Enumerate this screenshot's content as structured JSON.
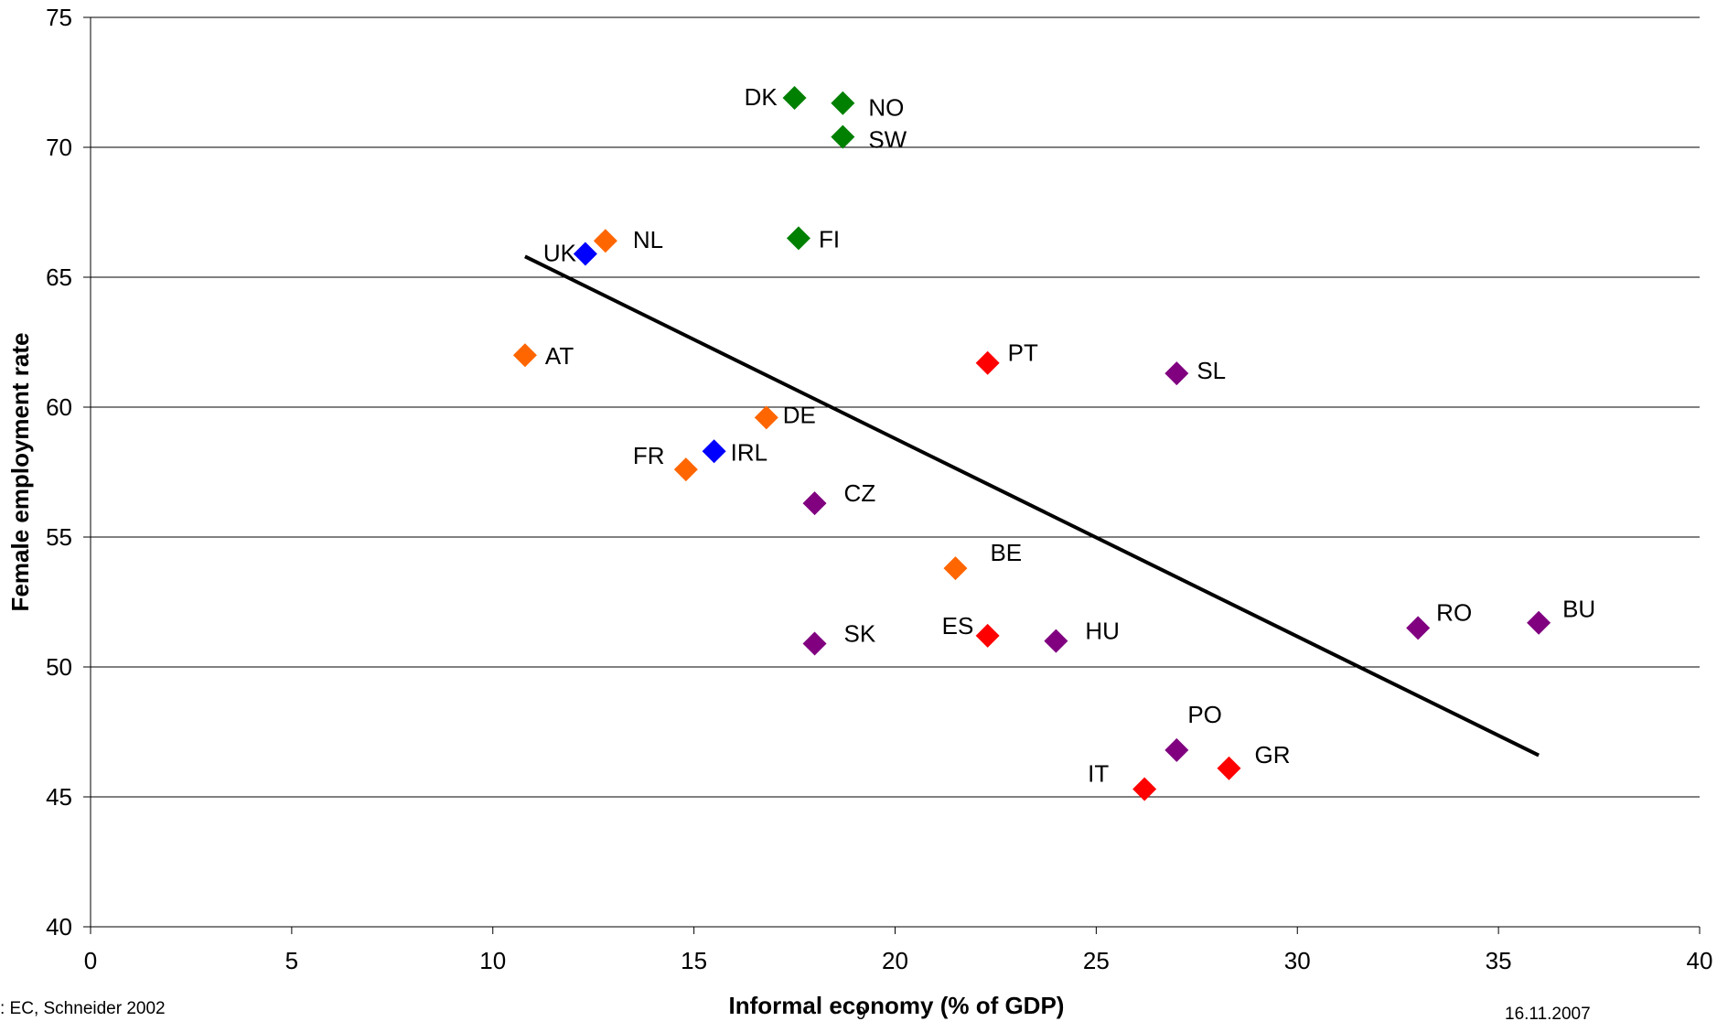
{
  "footer": {
    "source": ": EC, Schneider 2002",
    "page_number": "9",
    "date": "16.11.2007"
  },
  "chart_data": {
    "type": "scatter",
    "title": "",
    "xlabel": "Informal economy (% of GDP)",
    "ylabel": "Female employment rate",
    "xlim": [
      0,
      40
    ],
    "ylim": [
      40,
      75
    ],
    "x_ticks": [
      0,
      5,
      10,
      15,
      20,
      25,
      30,
      35,
      40
    ],
    "y_ticks": [
      40,
      45,
      50,
      55,
      60,
      65,
      70,
      75
    ],
    "grid": "horizontal",
    "legend": "none",
    "colors": {
      "green": "#008000",
      "orange": "#FF6600",
      "blue": "#0000FF",
      "red": "#FF0000",
      "purple": "#800080",
      "trend": "#000000"
    },
    "points": [
      {
        "label": "DK",
        "x": 17.5,
        "y": 71.9,
        "color": "green"
      },
      {
        "label": "NO",
        "x": 18.7,
        "y": 71.7,
        "color": "green"
      },
      {
        "label": "SW",
        "x": 18.7,
        "y": 70.4,
        "color": "green"
      },
      {
        "label": "FI",
        "x": 17.6,
        "y": 66.5,
        "color": "green"
      },
      {
        "label": "NL",
        "x": 12.8,
        "y": 66.4,
        "color": "orange"
      },
      {
        "label": "UK",
        "x": 12.3,
        "y": 65.9,
        "color": "blue"
      },
      {
        "label": "AT",
        "x": 10.8,
        "y": 62.0,
        "color": "orange"
      },
      {
        "label": "DE",
        "x": 16.8,
        "y": 59.6,
        "color": "orange"
      },
      {
        "label": "IRL",
        "x": 15.5,
        "y": 58.3,
        "color": "blue"
      },
      {
        "label": "FR",
        "x": 14.8,
        "y": 57.6,
        "color": "orange"
      },
      {
        "label": "PT",
        "x": 22.3,
        "y": 61.7,
        "color": "red"
      },
      {
        "label": "SL",
        "x": 27.0,
        "y": 61.3,
        "color": "purple"
      },
      {
        "label": "CZ",
        "x": 18.0,
        "y": 56.3,
        "color": "purple"
      },
      {
        "label": "BE",
        "x": 21.5,
        "y": 53.8,
        "color": "orange"
      },
      {
        "label": "SK",
        "x": 18.0,
        "y": 50.9,
        "color": "purple"
      },
      {
        "label": "ES",
        "x": 22.3,
        "y": 51.2,
        "color": "red"
      },
      {
        "label": "HU",
        "x": 24.0,
        "y": 51.0,
        "color": "purple"
      },
      {
        "label": "RO",
        "x": 33.0,
        "y": 51.5,
        "color": "purple"
      },
      {
        "label": "BU",
        "x": 36.0,
        "y": 51.7,
        "color": "purple"
      },
      {
        "label": "PO",
        "x": 27.0,
        "y": 46.8,
        "color": "purple"
      },
      {
        "label": "GR",
        "x": 28.3,
        "y": 46.1,
        "color": "red"
      },
      {
        "label": "IT",
        "x": 26.2,
        "y": 45.3,
        "color": "red"
      }
    ],
    "trendline": {
      "x": [
        10.8,
        36.0
      ],
      "y": [
        65.8,
        46.6
      ]
    }
  }
}
